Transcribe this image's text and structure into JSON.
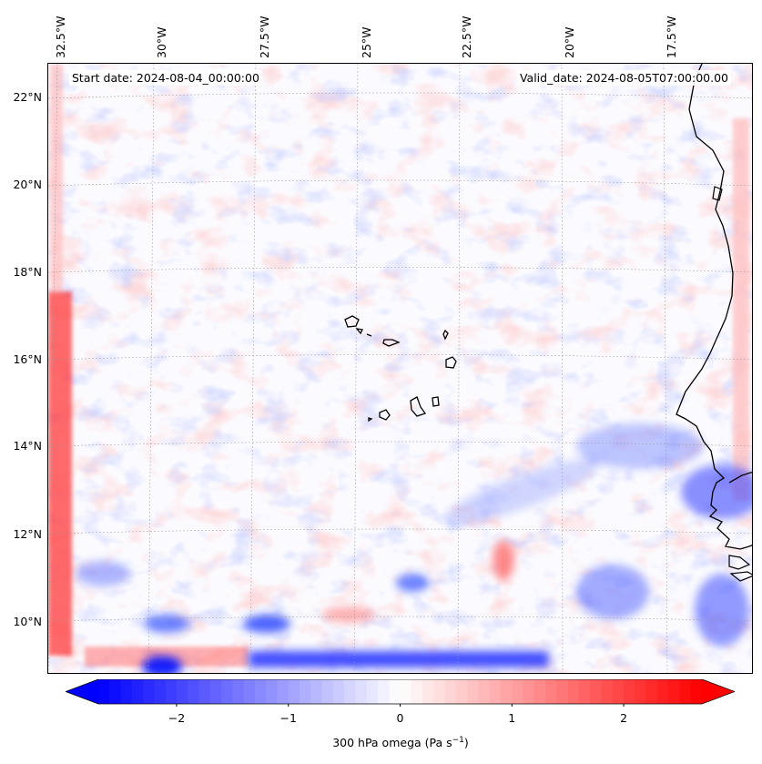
{
  "map": {
    "start_date": "Start date: 2024-08-04_00:00:00",
    "valid_date": "Valid_date: 2024-08-05T07:00:00.00",
    "longitude_labels": [
      "32.5°W",
      "30°W",
      "27.5°W",
      "25°W",
      "22.5°W",
      "20°W",
      "17.5°W"
    ],
    "latitude_labels": [
      "22°N",
      "20°N",
      "18°N",
      "16°N",
      "14°N",
      "12°N",
      "10°N"
    ],
    "extent": {
      "lon_min": -33.0,
      "lon_max": -15.3,
      "lat_min": 8.9,
      "lat_max": 22.8
    },
    "gridlines": true,
    "projection": "lambert-conformal",
    "coastline_color": "#000000"
  },
  "colorbar": {
    "label_prefix": "300 hPa omega (Pa s",
    "label_exponent": "−1",
    "label_suffix": ")",
    "ticks": [
      "−2",
      "−1",
      "0",
      "1",
      "2"
    ],
    "tick_values": [
      -2,
      -1,
      0,
      1,
      2
    ],
    "range": [
      -2.7,
      2.7
    ],
    "extend": "both",
    "colormap": "bwr",
    "color_min": "#0000ff",
    "color_mid": "#ffffff",
    "color_max": "#ff0000"
  }
}
